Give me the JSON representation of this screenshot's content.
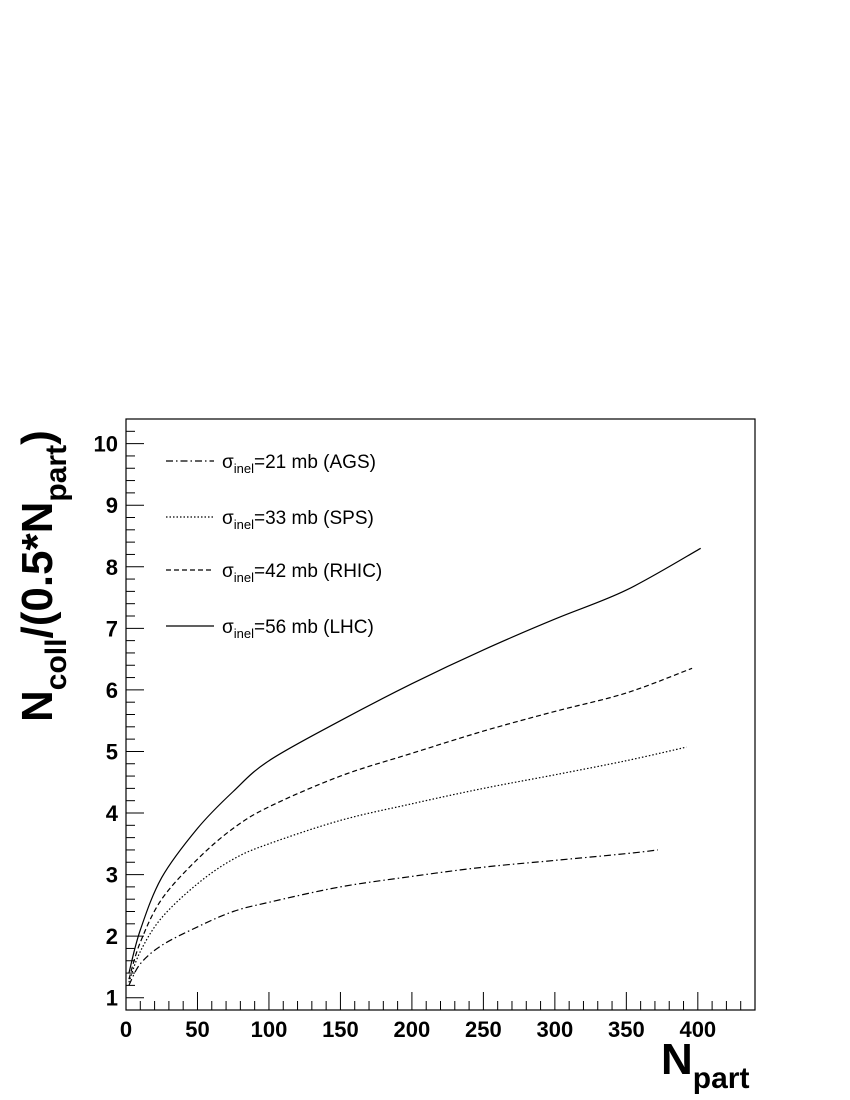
{
  "chart_data": {
    "type": "line",
    "title": "",
    "xlabel": {
      "main": "N",
      "sub": "part"
    },
    "ylabel": {
      "p1": "N",
      "p1_sub": "coll",
      "p2": "/(0.5*N",
      "p2_sub": "part",
      "p3": ")"
    },
    "xlim": [
      0,
      440
    ],
    "ylim": [
      0.8,
      10.4
    ],
    "x_ticks": [
      0,
      50,
      100,
      150,
      200,
      250,
      300,
      350,
      400
    ],
    "y_ticks": [
      1,
      2,
      3,
      4,
      5,
      6,
      7,
      8,
      9,
      10
    ],
    "x_tick_labels": [
      "0",
      "50",
      "100",
      "150",
      "200",
      "250",
      "300",
      "350",
      "400"
    ],
    "y_tick_labels": [
      "1",
      "2",
      "3",
      "4",
      "5",
      "6",
      "7",
      "8",
      "9",
      "10"
    ],
    "grid": false,
    "legend_position": "top-left",
    "series": [
      {
        "legend": {
          "sigma": "σ",
          "sub": "inel",
          "rest": "=21 mb (AGS)"
        },
        "dash": "dashdot",
        "x": [
          2,
          10,
          25,
          50,
          75,
          100,
          150,
          200,
          250,
          300,
          350,
          372
        ],
        "y": [
          1.2,
          1.55,
          1.85,
          2.15,
          2.4,
          2.55,
          2.8,
          2.97,
          3.12,
          3.23,
          3.34,
          3.4
        ]
      },
      {
        "legend": {
          "sigma": "σ",
          "sub": "inel",
          "rest": "=33 mb (SPS)"
        },
        "dash": "dotted",
        "x": [
          2,
          10,
          25,
          50,
          75,
          100,
          150,
          200,
          250,
          300,
          350,
          392
        ],
        "y": [
          1.25,
          1.75,
          2.3,
          2.85,
          3.25,
          3.5,
          3.88,
          4.15,
          4.4,
          4.62,
          4.85,
          5.07
        ]
      },
      {
        "legend": {
          "sigma": "σ",
          "sub": "inel",
          "rest": "=42 mb (RHIC)"
        },
        "dash": "dashed",
        "x": [
          2,
          10,
          25,
          50,
          75,
          100,
          150,
          200,
          250,
          300,
          350,
          396
        ],
        "y": [
          1.3,
          1.9,
          2.6,
          3.25,
          3.75,
          4.1,
          4.6,
          4.97,
          5.33,
          5.65,
          5.95,
          6.35
        ]
      },
      {
        "legend": {
          "sigma": "σ",
          "sub": "inel",
          "rest": "=56 mb (LHC)"
        },
        "dash": "solid",
        "x": [
          2,
          10,
          25,
          50,
          75,
          100,
          150,
          200,
          250,
          300,
          350,
          402
        ],
        "y": [
          1.4,
          2.1,
          2.95,
          3.75,
          4.35,
          4.85,
          5.5,
          6.1,
          6.65,
          7.15,
          7.62,
          8.3
        ]
      }
    ]
  }
}
